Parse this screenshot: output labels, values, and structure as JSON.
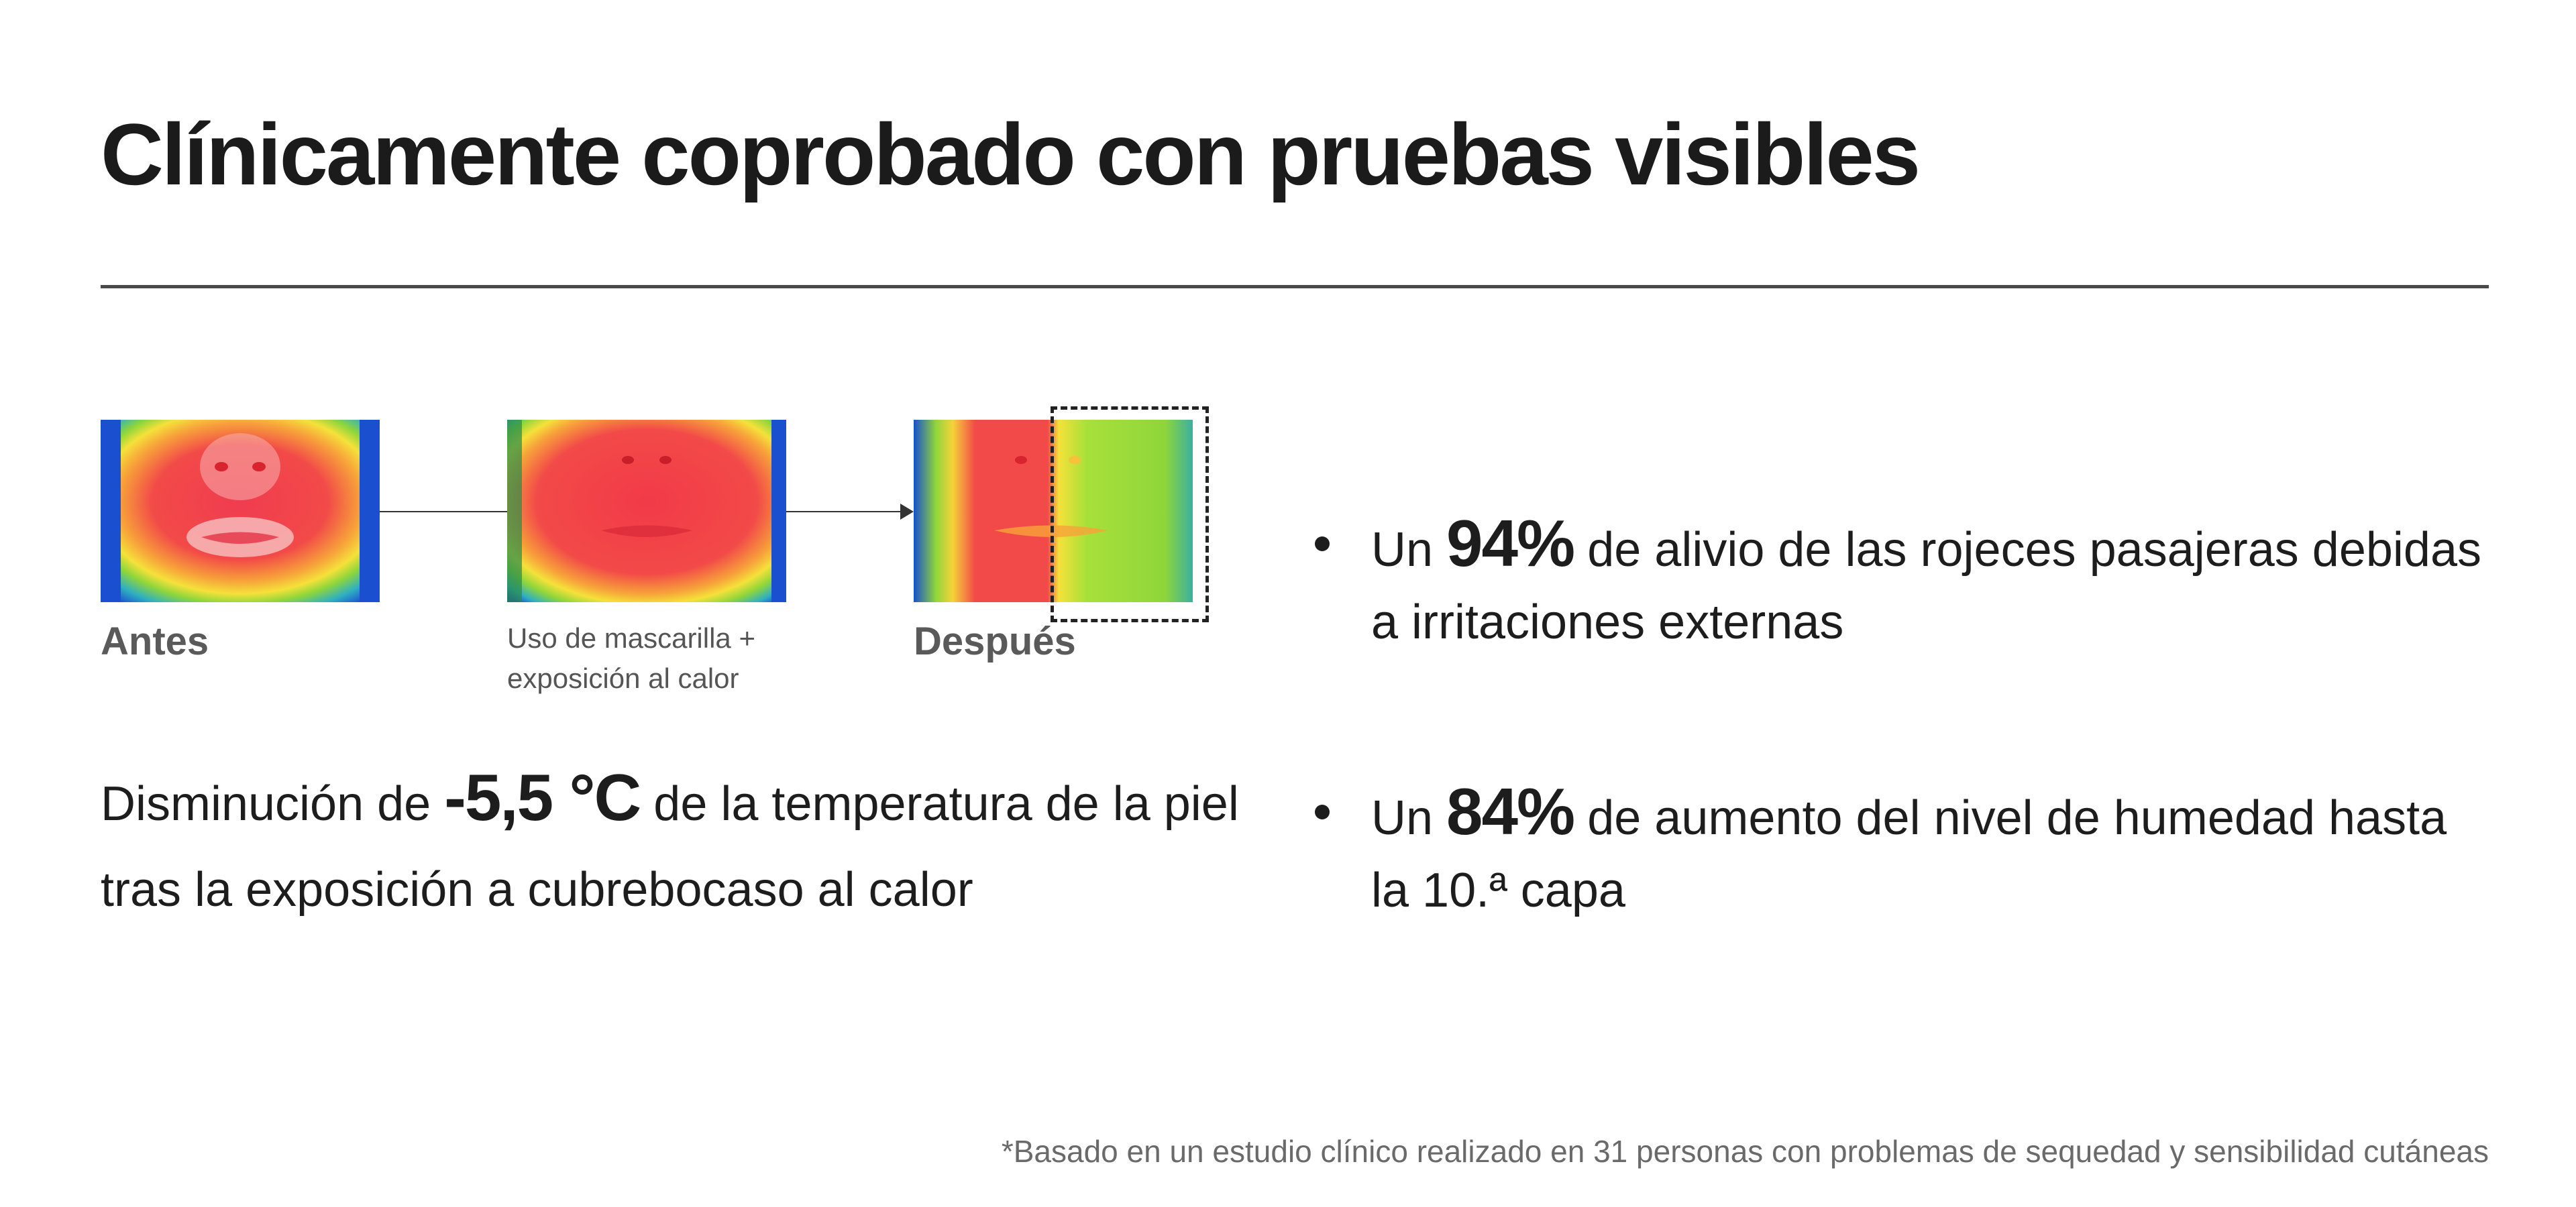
{
  "header": {
    "title": "Clínicamente coprobado con pruebas visibles"
  },
  "thermal_sequence": {
    "stages": [
      {
        "label": "Antes",
        "image_icon": "thermal-face-before-icon"
      },
      {
        "label": "Uso de mascarilla + exposición al calor",
        "image_icon": "thermal-face-mask-heat-icon"
      },
      {
        "label": "Después",
        "image_icon": "thermal-face-after-icon"
      }
    ]
  },
  "temperature": {
    "prefix": "Disminución de ",
    "value": "-5,5 °C",
    "suffix": " de la temperatura de la piel tras la exposición a cubrebocaso al calor"
  },
  "stats": [
    {
      "prefix": "Un ",
      "value": "94%",
      "suffix": " de alivio de las rojeces pasajeras debidas a irritaciones externas"
    },
    {
      "prefix": "Un ",
      "value": "84%",
      "suffix": " de aumento del nivel de humedad hasta la 10.ª capa"
    }
  ],
  "footnote": "*Basado en un estudio clínico realizado en 31 personas con problemas de sequedad y sensibilidad cutáneas",
  "colors": {
    "text": "#1d1d1d",
    "muted": "#5a5a5a",
    "divider": "#4a4a4a",
    "thermal_hot": "#f0404a",
    "thermal_warm": "#f7d23a",
    "thermal_mild": "#8fd63a",
    "thermal_cold": "#1a5fd6"
  }
}
